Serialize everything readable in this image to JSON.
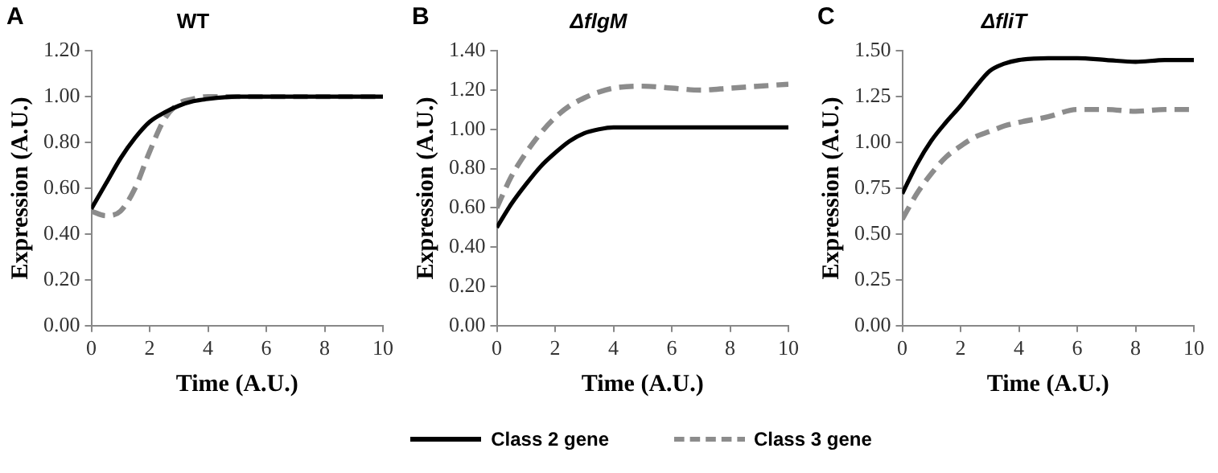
{
  "chart_data": [
    {
      "type": "line",
      "title": "WT",
      "annotations": [
        "A"
      ],
      "xlabel": "Time (A.U.)",
      "ylabel": "Expression (A.U.)",
      "xlim": [
        0,
        10
      ],
      "xticks": [
        0,
        2,
        4,
        6,
        8,
        10
      ],
      "ylim": [
        0,
        1.2
      ],
      "yticks": [
        {
          "value": 0,
          "label": "0.00"
        },
        {
          "value": 0.2,
          "label": "0.20"
        },
        {
          "value": 0.4,
          "label": "0.40"
        },
        {
          "value": 0.6,
          "label": "0.60"
        },
        {
          "value": 0.8,
          "label": "0.80"
        },
        {
          "value": 1,
          "label": "1.00"
        },
        {
          "value": 1.2,
          "label": "1.20"
        }
      ],
      "grid": false,
      "marker": "none",
      "series": [
        {
          "color": "#000000",
          "line_style": "solid",
          "x": [
            0,
            0.5,
            1,
            1.5,
            2,
            2.5,
            3,
            3.5,
            4,
            5,
            6,
            7,
            8,
            9,
            10
          ],
          "values": [
            0.51,
            0.62,
            0.73,
            0.82,
            0.89,
            0.93,
            0.96,
            0.98,
            0.99,
            1.0,
            1.0,
            1.0,
            1.0,
            1.0,
            1.0
          ]
        },
        {
          "color": "#8c8c8c",
          "line_style": "dashed",
          "x": [
            0,
            0.5,
            1,
            1.5,
            2,
            2.5,
            3,
            3.5,
            4,
            5,
            6,
            7,
            8,
            9,
            10
          ],
          "values": [
            0.5,
            0.48,
            0.5,
            0.6,
            0.76,
            0.9,
            0.97,
            0.99,
            1.0,
            1.0,
            1.0,
            1.0,
            1.0,
            1.0,
            1.0
          ]
        }
      ]
    },
    {
      "type": "line",
      "title": "ΔflgM",
      "annotations": [
        "B"
      ],
      "xlabel": "Time (A.U.)",
      "ylabel": "Expression (A.U.)",
      "xlim": [
        0,
        10
      ],
      "xticks": [
        0,
        2,
        4,
        6,
        8,
        10
      ],
      "ylim": [
        0,
        1.4
      ],
      "yticks": [
        {
          "value": 0,
          "label": "0.00"
        },
        {
          "value": 0.2,
          "label": "0.20"
        },
        {
          "value": 0.4,
          "label": "0.40"
        },
        {
          "value": 0.6,
          "label": "0.60"
        },
        {
          "value": 0.8,
          "label": "0.80"
        },
        {
          "value": 1,
          "label": "1.00"
        },
        {
          "value": 1.2,
          "label": "1.20"
        },
        {
          "value": 1.4,
          "label": "1.40"
        }
      ],
      "grid": false,
      "marker": "none",
      "legend": "bottom",
      "series": [
        {
          "name": "Class 2 gene",
          "color": "#000000",
          "line_style": "solid",
          "x": [
            0,
            0.5,
            1,
            1.5,
            2,
            2.5,
            3,
            3.5,
            4,
            5,
            6,
            8,
            10
          ],
          "values": [
            0.5,
            0.62,
            0.72,
            0.81,
            0.88,
            0.94,
            0.98,
            1.0,
            1.01,
            1.01,
            1.01,
            1.01,
            1.01
          ]
        },
        {
          "name": "Class 3 gene",
          "color": "#8c8c8c",
          "line_style": "dashed",
          "x": [
            0,
            0.5,
            1,
            1.5,
            2,
            2.5,
            3,
            3.5,
            4,
            5,
            6,
            7,
            8,
            10
          ],
          "values": [
            0.6,
            0.76,
            0.88,
            0.98,
            1.06,
            1.12,
            1.16,
            1.19,
            1.21,
            1.22,
            1.21,
            1.2,
            1.21,
            1.23
          ]
        }
      ]
    },
    {
      "type": "line",
      "title": "ΔfliT",
      "annotations": [
        "C"
      ],
      "xlabel": "Time (A.U.)",
      "ylabel": "Expression (A.U.)",
      "xlim": [
        0,
        10
      ],
      "xticks": [
        0,
        2,
        4,
        6,
        8,
        10
      ],
      "ylim": [
        0,
        1.5
      ],
      "yticks": [
        {
          "value": 0,
          "label": "0.00"
        },
        {
          "value": 0.25,
          "label": "0.25"
        },
        {
          "value": 0.5,
          "label": "0.50"
        },
        {
          "value": 0.75,
          "label": "0.75"
        },
        {
          "value": 1,
          "label": "1.00"
        },
        {
          "value": 1.25,
          "label": "1.25"
        },
        {
          "value": 1.5,
          "label": "1.50"
        }
      ],
      "grid": false,
      "marker": "none",
      "series": [
        {
          "color": "#000000",
          "line_style": "solid",
          "x": [
            0,
            0.5,
            1,
            1.5,
            2,
            2.5,
            3,
            3.5,
            4,
            5,
            6,
            7,
            8,
            9,
            10
          ],
          "values": [
            0.72,
            0.88,
            1.01,
            1.11,
            1.2,
            1.3,
            1.39,
            1.43,
            1.45,
            1.46,
            1.46,
            1.45,
            1.44,
            1.45,
            1.45
          ]
        },
        {
          "color": "#8c8c8c",
          "line_style": "dashed",
          "x": [
            0,
            0.5,
            1,
            1.5,
            2,
            2.5,
            3,
            3.5,
            4,
            5,
            6,
            7,
            8,
            9,
            10
          ],
          "values": [
            0.58,
            0.72,
            0.83,
            0.92,
            0.98,
            1.03,
            1.06,
            1.09,
            1.11,
            1.14,
            1.18,
            1.18,
            1.17,
            1.18,
            1.18
          ]
        }
      ]
    }
  ]
}
